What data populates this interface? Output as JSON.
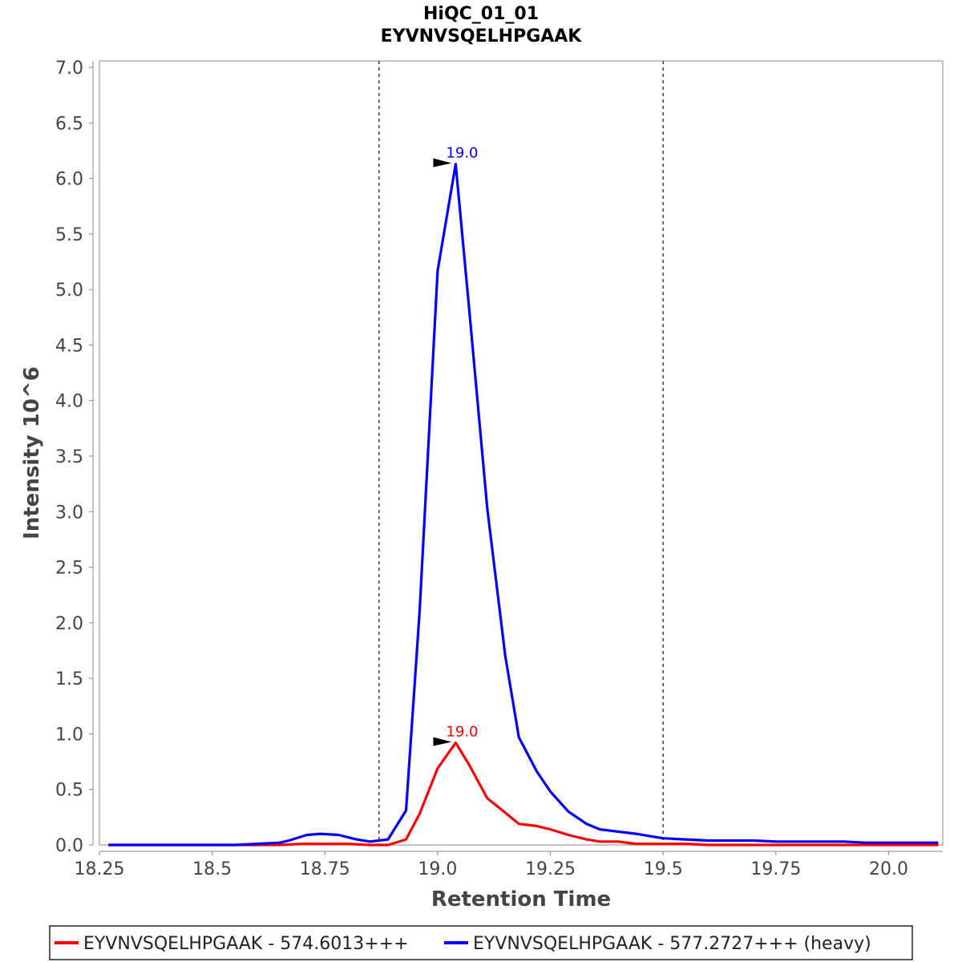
{
  "chart_data": {
    "type": "line",
    "title": "HiQC_01_01",
    "subtitle": "EYVNVSQELHPGAAK",
    "xlabel": "Retention Time",
    "ylabel": "Intensity 10^6",
    "xlim": [
      18.25,
      20.12
    ],
    "ylim": [
      0,
      7.0
    ],
    "x_ticks": [
      "18.25",
      "18.5",
      "18.75",
      "19.0",
      "19.25",
      "19.5",
      "19.75",
      "20.0"
    ],
    "y_ticks": [
      "0.0",
      "0.5",
      "1.0",
      "1.5",
      "2.0",
      "2.5",
      "3.0",
      "3.5",
      "4.0",
      "4.5",
      "5.0",
      "5.5",
      "6.0",
      "6.5",
      "7.0"
    ],
    "grid": false,
    "legend_placement": "bottom",
    "integration_boundaries": [
      18.87,
      19.5
    ],
    "series": [
      {
        "name": "EYVNVSQELHPGAAK - 574.6013+++",
        "color": "#ff0000",
        "apex_label": "19.0",
        "apex_x": 19.04,
        "x": [
          18.27,
          18.3,
          18.35,
          18.4,
          18.45,
          18.5,
          18.55,
          18.6,
          18.65,
          18.7,
          18.75,
          18.8,
          18.85,
          18.89,
          18.93,
          18.96,
          19.0,
          19.04,
          19.07,
          19.11,
          19.15,
          19.18,
          19.22,
          19.25,
          19.29,
          19.33,
          19.36,
          19.4,
          19.44,
          19.47,
          19.5,
          19.55,
          19.6,
          19.65,
          19.7,
          19.75,
          19.8,
          19.85,
          19.9,
          19.95,
          20.0,
          20.05,
          20.11
        ],
        "y": [
          0.0,
          0.0,
          0.0,
          0.0,
          0.0,
          0.0,
          0.0,
          0.0,
          0.0,
          0.01,
          0.01,
          0.01,
          0.0,
          0.0,
          0.05,
          0.28,
          0.69,
          0.92,
          0.72,
          0.42,
          0.29,
          0.19,
          0.17,
          0.14,
          0.09,
          0.05,
          0.03,
          0.03,
          0.01,
          0.01,
          0.01,
          0.01,
          0.0,
          0.0,
          0.0,
          0.0,
          0.0,
          0.0,
          0.0,
          0.0,
          0.0,
          0.0,
          0.0
        ]
      },
      {
        "name": "EYVNVSQELHPGAAK - 577.2727+++ (heavy)",
        "color": "#0000ff",
        "apex_label": "19.0",
        "apex_x": 19.04,
        "x": [
          18.27,
          18.3,
          18.35,
          18.4,
          18.45,
          18.5,
          18.55,
          18.6,
          18.65,
          18.67,
          18.71,
          18.74,
          18.78,
          18.82,
          18.85,
          18.89,
          18.93,
          18.96,
          19.0,
          19.04,
          19.07,
          19.11,
          19.15,
          19.18,
          19.22,
          19.25,
          19.29,
          19.33,
          19.36,
          19.4,
          19.44,
          19.47,
          19.5,
          19.55,
          19.6,
          19.65,
          19.7,
          19.75,
          19.8,
          19.85,
          19.9,
          19.95,
          20.0,
          20.05,
          20.11
        ],
        "y": [
          0.0,
          0.0,
          0.0,
          0.0,
          0.0,
          0.0,
          0.0,
          0.01,
          0.02,
          0.04,
          0.09,
          0.1,
          0.09,
          0.05,
          0.03,
          0.05,
          0.31,
          2.1,
          5.17,
          6.13,
          4.82,
          3.03,
          1.7,
          0.97,
          0.66,
          0.48,
          0.3,
          0.19,
          0.14,
          0.12,
          0.1,
          0.08,
          0.06,
          0.05,
          0.04,
          0.04,
          0.04,
          0.03,
          0.03,
          0.03,
          0.03,
          0.02,
          0.02,
          0.02,
          0.02
        ]
      }
    ]
  }
}
